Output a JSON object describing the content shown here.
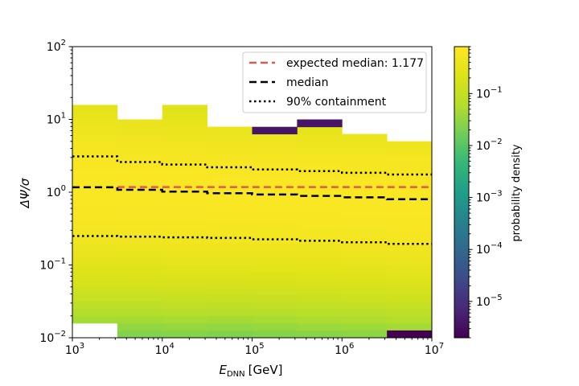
{
  "chart_data": {
    "type": "heatmap",
    "xlabel_main": "E",
    "xlabel_sub": "DNN",
    "xlabel_unit": "[GeV]",
    "ylabel_main": "ΔΨ/σ",
    "x_scale": "log",
    "y_scale": "log",
    "xlim": [
      1000,
      10000000
    ],
    "ylim": [
      0.01,
      100
    ],
    "x_ticks": [
      {
        "value": 1000,
        "base": "10",
        "exp": "3"
      },
      {
        "value": 10000,
        "base": "10",
        "exp": "4"
      },
      {
        "value": 100000,
        "base": "10",
        "exp": "5"
      },
      {
        "value": 1000000,
        "base": "10",
        "exp": "6"
      },
      {
        "value": 10000000,
        "base": "10",
        "exp": "7"
      }
    ],
    "y_ticks": [
      {
        "value": 0.01,
        "base": "10",
        "exp": "−2"
      },
      {
        "value": 0.1,
        "base": "10",
        "exp": "−1"
      },
      {
        "value": 1,
        "base": "10",
        "exp": "0"
      },
      {
        "value": 10,
        "base": "10",
        "exp": "1"
      },
      {
        "value": 100,
        "base": "10",
        "exp": "2"
      }
    ],
    "x_bin_edges": [
      1000,
      3162,
      10000,
      31623,
      100000,
      316228,
      1000000,
      3162278,
      10000000
    ],
    "y_bins_per_decade": 10,
    "column_params": [
      {
        "lo": 0.017,
        "hi": 12.6,
        "mu": 0.08,
        "sigma": 0.78
      },
      {
        "lo": 0.01,
        "hi": 10.0,
        "mu": 0.04,
        "sigma": 0.76
      },
      {
        "lo": 0.01,
        "hi": 12.6,
        "mu": 0.02,
        "sigma": 0.76
      },
      {
        "lo": 0.01,
        "hi": 7.9,
        "mu": -0.01,
        "sigma": 0.74
      },
      {
        "lo": 0.01,
        "hi": 7.9,
        "mu": -0.03,
        "sigma": 0.74
      },
      {
        "lo": 0.01,
        "hi": 10.0,
        "mu": -0.05,
        "sigma": 0.74
      },
      {
        "lo": 0.01,
        "hi": 6.3,
        "mu": -0.07,
        "sigma": 0.74
      },
      {
        "lo": 0.01,
        "hi": 5.0,
        "mu": -0.1,
        "sigma": 0.74
      }
    ],
    "expected_median": {
      "label": "expected median: 1.177",
      "y": 1.177,
      "color": "#e05a4a"
    },
    "median_line": {
      "label": "median",
      "x": [
        1000,
        3162,
        10000,
        31623,
        100000,
        316228,
        1000000,
        3162278,
        10000000
      ],
      "y": [
        1.17,
        1.08,
        1.02,
        0.97,
        0.93,
        0.89,
        0.85,
        0.8,
        0.8
      ]
    },
    "containment_upper": {
      "label": "90% containment",
      "x": [
        1000,
        3162,
        10000,
        31623,
        100000,
        316228,
        1000000,
        3162278,
        10000000
      ],
      "y": [
        3.1,
        2.6,
        2.4,
        2.2,
        2.05,
        1.95,
        1.85,
        1.75,
        1.75
      ]
    },
    "containment_lower": {
      "x": [
        1000,
        3162,
        10000,
        31623,
        100000,
        316228,
        1000000,
        3162278,
        10000000
      ],
      "y": [
        0.25,
        0.245,
        0.24,
        0.235,
        0.225,
        0.215,
        0.205,
        0.195,
        0.195
      ]
    },
    "colorbar": {
      "label": "probability density",
      "scale": "log",
      "range": [
        2e-06,
        0.8
      ],
      "ticks": [
        {
          "value": 1e-05,
          "base": "10",
          "exp": "−5"
        },
        {
          "value": 0.0001,
          "base": "10",
          "exp": "−4"
        },
        {
          "value": 0.001,
          "base": "10",
          "exp": "−3"
        },
        {
          "value": 0.01,
          "base": "10",
          "exp": "−2"
        },
        {
          "value": 0.1,
          "base": "10",
          "exp": "−1"
        }
      ],
      "colormap": "viridis"
    }
  }
}
